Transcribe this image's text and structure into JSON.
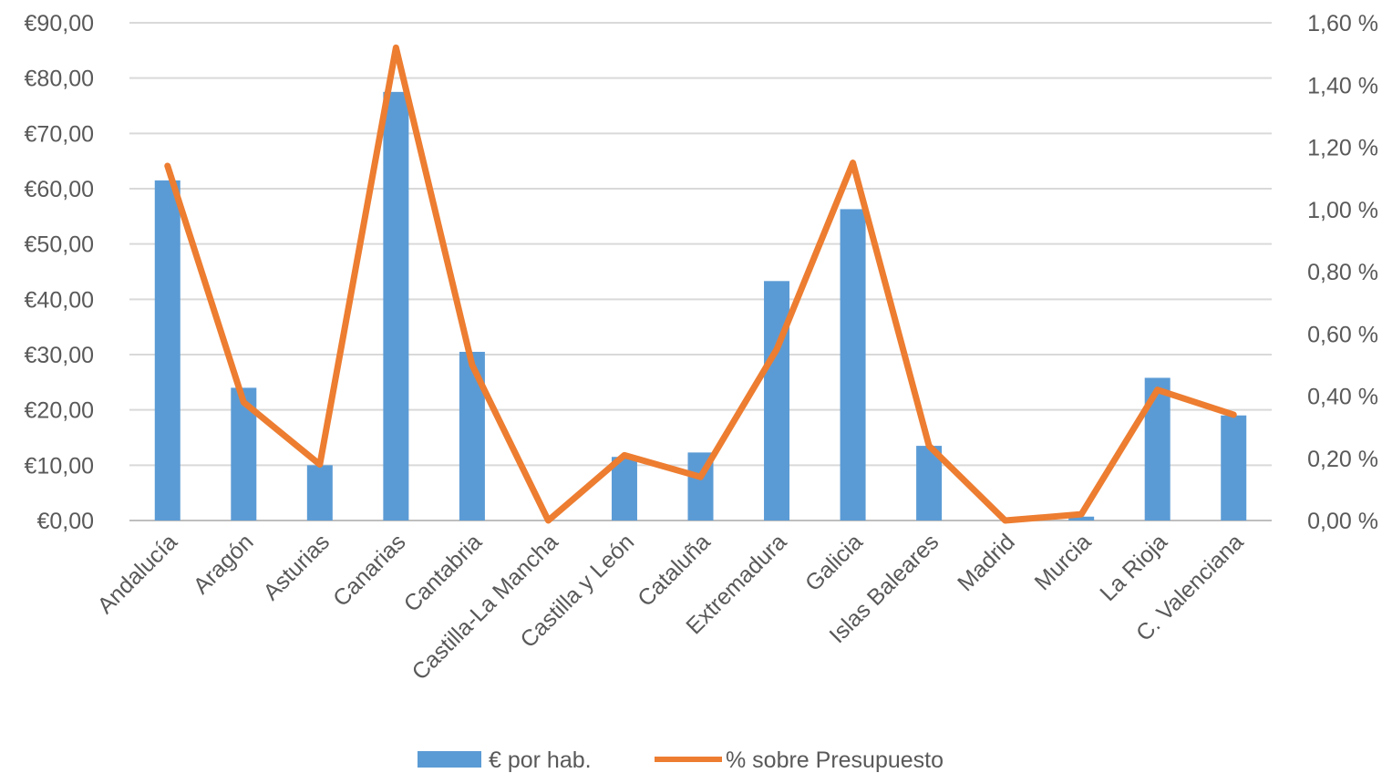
{
  "chart_data": {
    "type": "bar+line",
    "title": "",
    "xlabel": "",
    "ylabel": "",
    "y2label": "",
    "categories": [
      "Andalucía",
      "Aragón",
      "Asturias",
      "Canarias",
      "Cantabria",
      "Castilla-La Mancha",
      "Castilla y León",
      "Cataluña",
      "Extremadura",
      "Galicia",
      "Islas Baleares",
      "Madrid",
      "Murcia",
      "La Rioja",
      "C. Valenciana"
    ],
    "series": [
      {
        "name": "€ por hab.",
        "type": "bar",
        "axis": "left",
        "color": "#5B9BD5",
        "values": [
          61.5,
          24.0,
          10.0,
          77.5,
          30.5,
          0.0,
          11.5,
          12.3,
          43.3,
          56.3,
          13.5,
          0.0,
          0.7,
          25.8,
          19.0
        ]
      },
      {
        "name": "% sobre Presupuesto",
        "type": "line",
        "axis": "right",
        "color": "#ED7D31",
        "values": [
          1.14,
          0.38,
          0.18,
          1.52,
          0.5,
          0.0,
          0.21,
          0.14,
          0.55,
          1.15,
          0.24,
          0.0,
          0.02,
          0.42,
          0.34
        ]
      }
    ],
    "y_left": {
      "min": 0,
      "max": 90,
      "ticks": [
        0,
        10,
        20,
        30,
        40,
        50,
        60,
        70,
        80,
        90
      ],
      "tick_labels": [
        "€0,00",
        "€10,00",
        "€20,00",
        "€30,00",
        "€40,00",
        "€50,00",
        "€60,00",
        "€70,00",
        "€80,00",
        "€90,00"
      ]
    },
    "y_right": {
      "min": 0,
      "max": 1.6,
      "ticks": [
        0,
        0.2,
        0.4,
        0.6,
        0.8,
        1.0,
        1.2,
        1.4,
        1.6
      ],
      "tick_labels": [
        "0,00 %",
        "0,20 %",
        "0,40 %",
        "0,60 %",
        "0,80 %",
        "1,00 %",
        "1,20 %",
        "1,40 %",
        "1,60 %"
      ]
    },
    "grid": true,
    "gridline_color": "#D9D9D9",
    "legend_position": "bottom"
  }
}
